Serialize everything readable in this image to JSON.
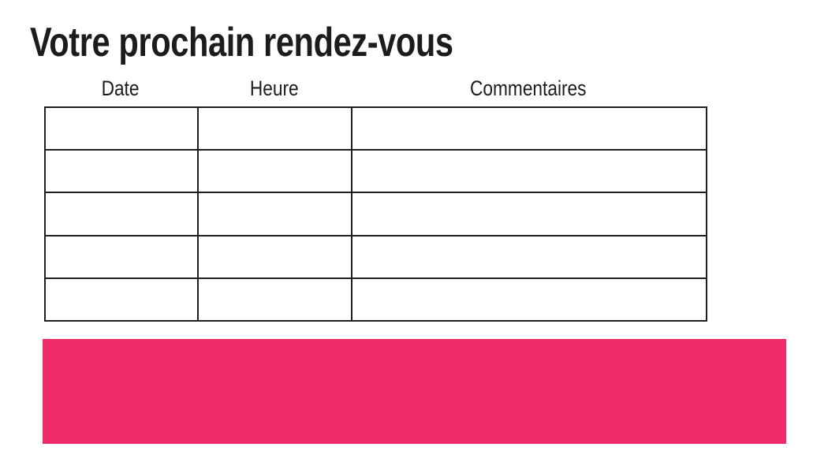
{
  "page": {
    "title": "Votre prochain rendez-vous"
  },
  "table": {
    "headers": [
      "Date",
      "Heure",
      "Commentaires"
    ],
    "row_count": 5,
    "rows": [
      {
        "date": "",
        "heure": "",
        "commentaires": ""
      },
      {
        "date": "",
        "heure": "",
        "commentaires": ""
      },
      {
        "date": "",
        "heure": "",
        "commentaires": ""
      },
      {
        "date": "",
        "heure": "",
        "commentaires": ""
      },
      {
        "date": "",
        "heure": "",
        "commentaires": ""
      }
    ]
  },
  "colors": {
    "accent_pink": "#ED2C68",
    "grid_border": "#1F1F1F",
    "text": "#1C1C1C",
    "background": "#FFFFFF"
  }
}
